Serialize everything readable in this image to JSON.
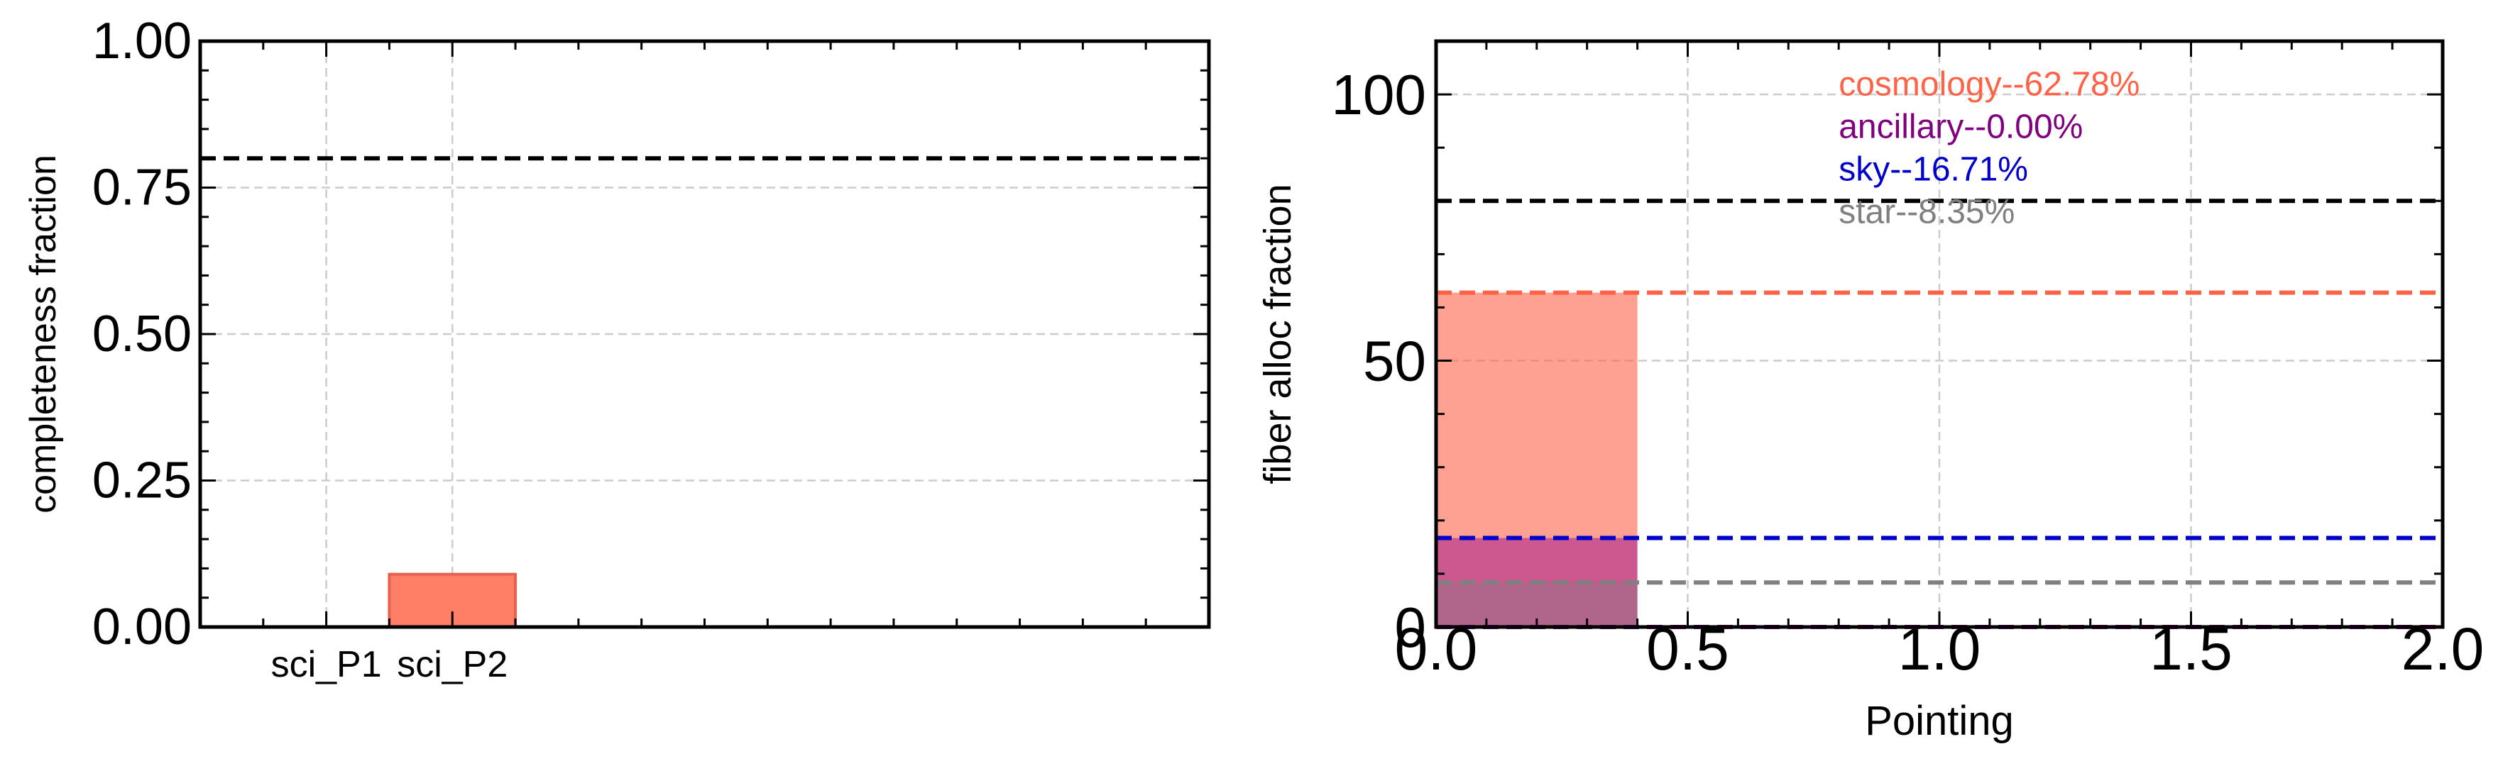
{
  "chart_data": [
    {
      "type": "bar",
      "categories": [
        "sci_P1",
        "sci_P2"
      ],
      "values": [
        0.0,
        0.09
      ],
      "bar_color": "#ff7f66",
      "bar_edge_color": "#e8604c",
      "ylabel": "completeness fraction",
      "xlabel": "",
      "ylim": [
        0,
        1.0
      ],
      "yticks": [
        "0.00",
        "0.25",
        "0.50",
        "0.75",
        "1.00"
      ],
      "reference_line": {
        "y": 0.8,
        "color": "#000000",
        "style": "dashed"
      },
      "grid": true
    },
    {
      "type": "bar",
      "xlabel": "Pointing",
      "ylabel": "fiber alloc fraction",
      "xlim": [
        0,
        2.0
      ],
      "ylim": [
        0,
        110
      ],
      "xticks": [
        "0.0",
        "0.5",
        "1.0",
        "1.5",
        "2.0"
      ],
      "yticks": [
        "0",
        "50",
        "100"
      ],
      "grid": true,
      "stacked_bars": [
        {
          "x_start": 0.0,
          "x_end": 0.4,
          "value": 62.78,
          "color": "#ff6347",
          "opacity": 0.6
        },
        {
          "x_start": 0.0,
          "x_end": 0.4,
          "value": 16.71,
          "color": "#8b008b",
          "opacity": 0.45
        },
        {
          "x_start": 0.0,
          "x_end": 0.4,
          "value": 8.35,
          "color": "#808080",
          "opacity": 0.35
        }
      ],
      "reference_lines": [
        {
          "y": 80,
          "color": "#000000"
        },
        {
          "y": 62.78,
          "color": "#ff6347"
        },
        {
          "y": 16.71,
          "color": "#0000cd"
        },
        {
          "y": 8.35,
          "color": "#808080"
        },
        {
          "y": 0.0,
          "color": "#800080"
        }
      ],
      "annotations": [
        {
          "text": "cosmology--62.78%",
          "color": "#ff6347"
        },
        {
          "text": "ancillary--0.00%",
          "color": "#800080"
        },
        {
          "text": "sky--16.71%",
          "color": "#0000cd"
        },
        {
          "text": "star--8.35%",
          "color": "#808080"
        }
      ]
    }
  ]
}
